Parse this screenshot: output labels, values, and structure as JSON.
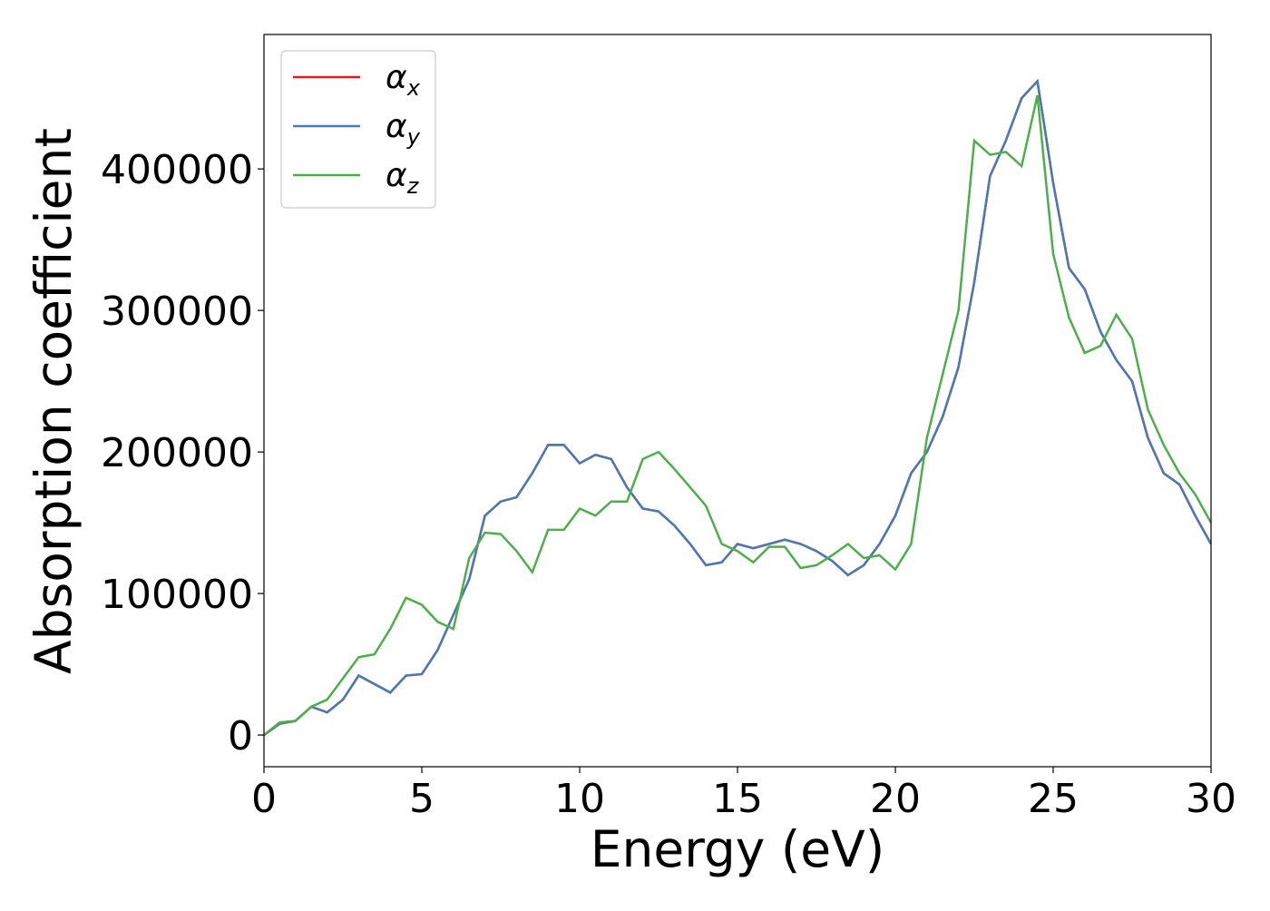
{
  "chart_data": {
    "type": "line",
    "xlabel": "Energy (eV)",
    "ylabel": "Absorption coefficient",
    "x": [
      0,
      0.5,
      1,
      1.5,
      2,
      2.5,
      3,
      3.5,
      4,
      4.5,
      5,
      5.5,
      6,
      6.5,
      7,
      7.5,
      8,
      8.5,
      9,
      9.5,
      10,
      10.5,
      11,
      11.5,
      12,
      12.5,
      13,
      13.5,
      14,
      14.5,
      15,
      15.5,
      16,
      16.5,
      17,
      17.5,
      18,
      18.5,
      19,
      19.5,
      20,
      20.5,
      21,
      21.5,
      22,
      22.5,
      23,
      23.5,
      24,
      24.5,
      25,
      25.5,
      26,
      26.5,
      27,
      27.5,
      28,
      28.5,
      29,
      29.5,
      30
    ],
    "series": [
      {
        "name": "αx",
        "color": "#e41a1c",
        "values": [
          0,
          8000,
          10000,
          20000,
          16000,
          25000,
          42000,
          36000,
          30000,
          42000,
          43000,
          60000,
          85000,
          110000,
          155000,
          165000,
          168000,
          185000,
          205000,
          205000,
          192000,
          198000,
          195000,
          175000,
          160000,
          158000,
          148000,
          135000,
          120000,
          122000,
          135000,
          132000,
          135000,
          138000,
          135000,
          130000,
          123000,
          113000,
          120000,
          135000,
          155000,
          185000,
          200000,
          225000,
          260000,
          320000,
          395000,
          420000,
          450000,
          462000,
          390000,
          330000,
          315000,
          285000,
          265000,
          250000,
          210000,
          185000,
          177000,
          155000,
          135000
        ]
      },
      {
        "name": "αy",
        "color": "#4a7ab5",
        "values": [
          0,
          8000,
          10000,
          20000,
          16000,
          25000,
          42000,
          36000,
          30000,
          42000,
          43000,
          60000,
          85000,
          110000,
          155000,
          165000,
          168000,
          185000,
          205000,
          205000,
          192000,
          198000,
          195000,
          175000,
          160000,
          158000,
          148000,
          135000,
          120000,
          122000,
          135000,
          132000,
          135000,
          138000,
          135000,
          130000,
          123000,
          113000,
          120000,
          135000,
          155000,
          185000,
          200000,
          225000,
          260000,
          320000,
          395000,
          420000,
          450000,
          462000,
          390000,
          330000,
          315000,
          285000,
          265000,
          250000,
          210000,
          185000,
          177000,
          155000,
          135000
        ]
      },
      {
        "name": "αz",
        "color": "#4daf4a",
        "values": [
          0,
          9000,
          10000,
          20000,
          25000,
          40000,
          55000,
          57000,
          75000,
          97000,
          92000,
          80000,
          75000,
          125000,
          143000,
          142000,
          130000,
          115000,
          145000,
          145000,
          160000,
          155000,
          165000,
          165000,
          195000,
          200000,
          188000,
          175000,
          162000,
          135000,
          130000,
          122000,
          133000,
          133000,
          118000,
          120000,
          127000,
          135000,
          125000,
          127000,
          117000,
          135000,
          210000,
          255000,
          300000,
          420000,
          410000,
          412000,
          402000,
          452000,
          340000,
          295000,
          270000,
          275000,
          297000,
          280000,
          230000,
          205000,
          185000,
          170000,
          150000
        ]
      }
    ],
    "xlim": [
      0,
      30
    ],
    "xticks": [
      0,
      5,
      10,
      15,
      20,
      25,
      30
    ],
    "ylim": [
      -22400,
      495000
    ],
    "yticks": [
      0,
      100000,
      200000,
      300000,
      400000
    ],
    "legend": "upper left",
    "grid": false
  }
}
